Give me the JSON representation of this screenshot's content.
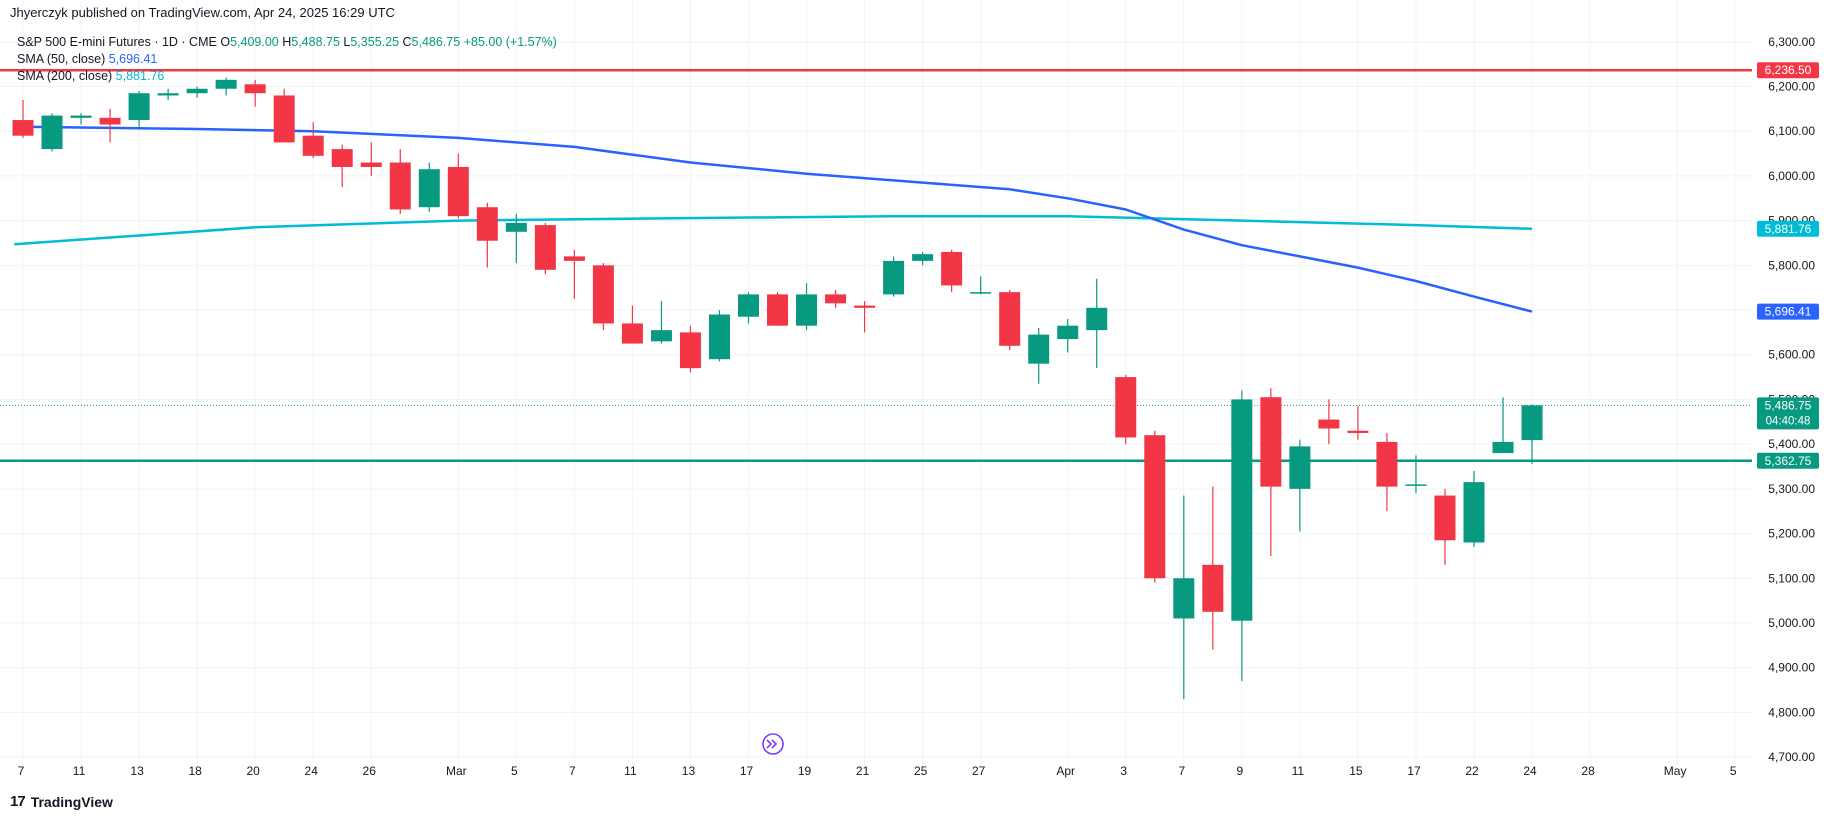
{
  "header": {
    "published": "Jhyerczyk published on TradingView.com, Apr 24, 2025 16:29 UTC"
  },
  "legend": {
    "symbol": "S&P 500 E-mini Futures · 1D · CME",
    "o_key": "O",
    "o_val": "5,409.00",
    "h_key": "H",
    "h_val": "5,488.75",
    "l_key": "L",
    "l_val": "5,355.25",
    "c_key": "C",
    "c_val": "5,486.75",
    "change": "+85.00 (+1.57%)",
    "sma50_label": "SMA (50, close)",
    "sma50_val": "5,696.41",
    "sma200_label": "SMA (200, close)",
    "sma200_val": "5,881.76"
  },
  "footer": {
    "logo": "17",
    "brand": "TradingView"
  },
  "colors": {
    "up": "#089981",
    "down": "#f23645",
    "sma50": "#2962ff",
    "sma200": "#00bcd4",
    "resistance": "#f23645",
    "support": "#089981",
    "grid": "#f0f3fa"
  },
  "chart_data": {
    "type": "candlestick",
    "ylim": [
      4680,
      6360
    ],
    "yticks": [
      4700,
      4800,
      4900,
      5000,
      5100,
      5200,
      5300,
      5400,
      5500,
      5600,
      5700,
      5800,
      5900,
      6000,
      6100,
      6200,
      6300
    ],
    "ytick_labels": [
      "4,700.00",
      "4,800.00",
      "4,900.00",
      "5,000.00",
      "5,100.00",
      "5,200.00",
      "5,300.00",
      "5,400.00",
      "5,500.00",
      "5,600.00",
      "5,700.00",
      "5,800.00",
      "5,900.00",
      "6,000.00",
      "6,100.00",
      "6,200.00",
      "6,300.00"
    ],
    "xticks": [
      {
        "label": "7",
        "i": 0
      },
      {
        "label": "11",
        "i": 2
      },
      {
        "label": "13",
        "i": 4
      },
      {
        "label": "18",
        "i": 6
      },
      {
        "label": "20",
        "i": 8
      },
      {
        "label": "24",
        "i": 10
      },
      {
        "label": "26",
        "i": 12
      },
      {
        "label": "Mar",
        "i": 15
      },
      {
        "label": "5",
        "i": 17
      },
      {
        "label": "7",
        "i": 19
      },
      {
        "label": "11",
        "i": 21
      },
      {
        "label": "13",
        "i": 23
      },
      {
        "label": "17",
        "i": 25
      },
      {
        "label": "19",
        "i": 27
      },
      {
        "label": "21",
        "i": 29
      },
      {
        "label": "25",
        "i": 31
      },
      {
        "label": "27",
        "i": 33
      },
      {
        "label": "Apr",
        "i": 36
      },
      {
        "label": "3",
        "i": 38
      },
      {
        "label": "7",
        "i": 40
      },
      {
        "label": "9",
        "i": 42
      },
      {
        "label": "11",
        "i": 44
      },
      {
        "label": "15",
        "i": 46
      },
      {
        "label": "17",
        "i": 48
      },
      {
        "label": "22",
        "i": 50
      },
      {
        "label": "24",
        "i": 52
      },
      {
        "label": "28",
        "i": 54
      },
      {
        "label": "May",
        "i": 57
      },
      {
        "label": "5",
        "i": 59
      }
    ],
    "candles": [
      [
        6125,
        6170,
        6085,
        6090
      ],
      [
        6060,
        6140,
        6055,
        6135
      ],
      [
        6130,
        6140,
        6115,
        6135
      ],
      [
        6130,
        6150,
        6075,
        6115
      ],
      [
        6125,
        6190,
        6110,
        6185
      ],
      [
        6180,
        6195,
        6170,
        6185
      ],
      [
        6185,
        6200,
        6175,
        6195
      ],
      [
        6195,
        6220,
        6180,
        6215
      ],
      [
        6205,
        6215,
        6155,
        6185
      ],
      [
        6180,
        6195,
        6075,
        6075
      ],
      [
        6090,
        6120,
        6040,
        6045
      ],
      [
        6060,
        6070,
        5975,
        6020
      ],
      [
        6030,
        6075,
        6000,
        6020
      ],
      [
        6030,
        6060,
        5915,
        5925
      ],
      [
        5930,
        6030,
        5920,
        6015
      ],
      [
        6020,
        6050,
        5905,
        5910
      ],
      [
        5930,
        5940,
        5795,
        5855
      ],
      [
        5875,
        5915,
        5805,
        5895
      ],
      [
        5890,
        5895,
        5780,
        5790
      ],
      [
        5820,
        5835,
        5725,
        5810
      ],
      [
        5800,
        5805,
        5655,
        5670
      ],
      [
        5670,
        5710,
        5625,
        5625
      ],
      [
        5630,
        5720,
        5625,
        5655
      ],
      [
        5650,
        5665,
        5560,
        5570
      ],
      [
        5590,
        5700,
        5585,
        5690
      ],
      [
        5685,
        5740,
        5670,
        5735
      ],
      [
        5735,
        5740,
        5665,
        5665
      ],
      [
        5665,
        5760,
        5655,
        5735
      ],
      [
        5735,
        5745,
        5705,
        5715
      ],
      [
        5710,
        5720,
        5650,
        5705
      ],
      [
        5735,
        5820,
        5730,
        5810
      ],
      [
        5810,
        5830,
        5800,
        5825
      ],
      [
        5830,
        5835,
        5740,
        5755
      ],
      [
        5740,
        5775,
        5735,
        5740
      ],
      [
        5740,
        5745,
        5610,
        5620
      ],
      [
        5580,
        5660,
        5535,
        5645
      ],
      [
        5635,
        5680,
        5605,
        5665
      ],
      [
        5655,
        5770,
        5570,
        5705
      ],
      [
        5550,
        5555,
        5400,
        5415
      ],
      [
        5420,
        5430,
        5090,
        5100
      ],
      [
        5010,
        5285,
        4830,
        5100
      ],
      [
        5130,
        5305,
        4940,
        5025
      ],
      [
        5005,
        5520,
        4870,
        5500
      ],
      [
        5505,
        5525,
        5150,
        5305
      ],
      [
        5300,
        5410,
        5205,
        5395
      ],
      [
        5455,
        5500,
        5400,
        5435
      ],
      [
        5430,
        5485,
        5410,
        5425
      ],
      [
        5405,
        5425,
        5250,
        5305
      ],
      [
        5310,
        5375,
        5290,
        5310
      ],
      [
        5285,
        5300,
        5130,
        5185
      ],
      [
        5180,
        5340,
        5170,
        5315
      ],
      [
        5380,
        5505,
        5380,
        5405
      ],
      [
        5409,
        5488.75,
        5355.25,
        5486.75
      ]
    ],
    "sma50": [
      [
        0,
        6110
      ],
      [
        6,
        6105
      ],
      [
        10,
        6100
      ],
      [
        15,
        6085
      ],
      [
        19,
        6065
      ],
      [
        23,
        6030
      ],
      [
        27,
        6005
      ],
      [
        31,
        5985
      ],
      [
        34,
        5970
      ],
      [
        36,
        5950
      ],
      [
        38,
        5925
      ],
      [
        40,
        5880
      ],
      [
        42,
        5845
      ],
      [
        44,
        5820
      ],
      [
        46,
        5795
      ],
      [
        48,
        5765
      ],
      [
        50,
        5730
      ],
      [
        52,
        5696.41
      ]
    ],
    "sma200": [
      [
        -0.3,
        5847
      ],
      [
        8,
        5885
      ],
      [
        15,
        5900
      ],
      [
        22,
        5905
      ],
      [
        30,
        5910
      ],
      [
        36,
        5910
      ],
      [
        42,
        5900
      ],
      [
        48,
        5890
      ],
      [
        52,
        5881.76
      ]
    ],
    "resistance": 6236.5,
    "support": 5362.75,
    "last_price": 5486.75,
    "price_tags": {
      "resistance": "6,236.50",
      "sma200": "5,881.76",
      "sma50": "5,696.41",
      "last_price": "5,486.75",
      "countdown": "04:40:48",
      "support": "5,362.75"
    }
  }
}
